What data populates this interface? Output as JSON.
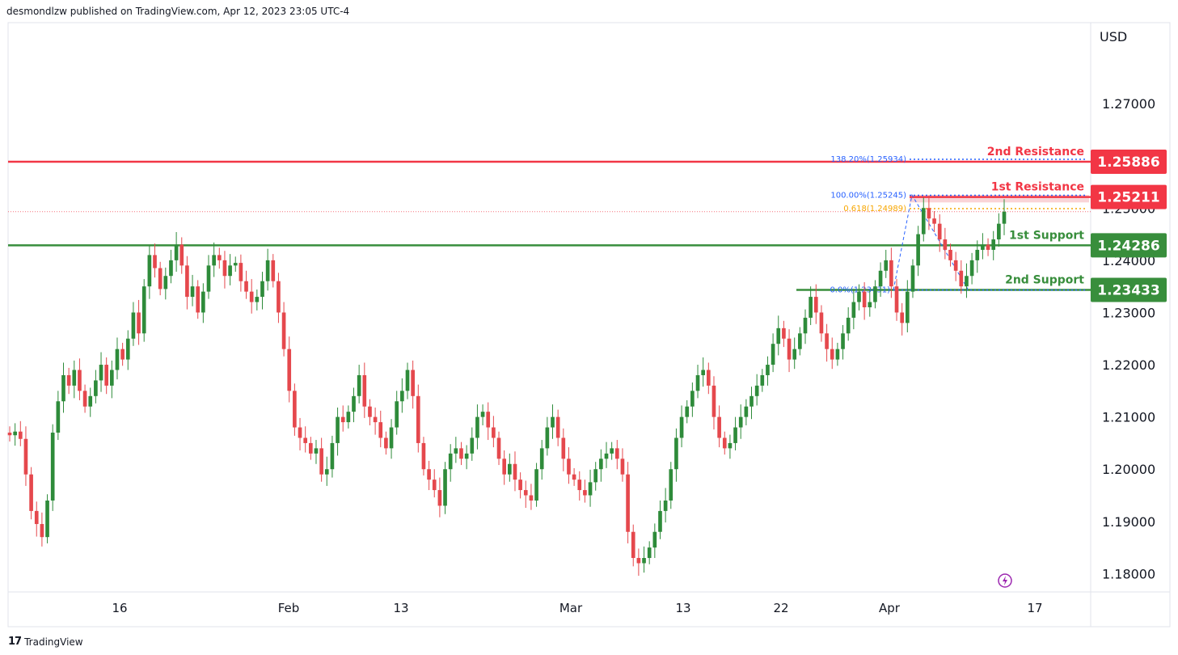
{
  "header": {
    "published": "desmondlzw published on TradingView.com, Apr 12, 2023 23:05 UTC-4"
  },
  "footer": {
    "logo": "17",
    "brand": "TradingView"
  },
  "colors": {
    "resistance": "#f23645",
    "support": "#388e3c",
    "bull": "#2e8b3a",
    "bear": "#e5484d",
    "fib": "#2962ff",
    "fib618": "#f7a600",
    "zone": "#f8c9cd"
  },
  "chart_data": {
    "type": "candlestick",
    "currency": "USD",
    "yticks": [
      "1.27000",
      "1.25000",
      "1.24000",
      "1.23000",
      "1.22000",
      "1.21000",
      "1.20000",
      "1.19000",
      "1.18000"
    ],
    "ylim": [
      1.1765,
      1.2855
    ],
    "xticks": [
      "16",
      "Feb",
      "13",
      "Mar",
      "13",
      "22",
      "Apr",
      "17"
    ],
    "levels": [
      {
        "name": "2nd Resistance",
        "price": "1.25886",
        "value": 1.25886,
        "kind": "resistance"
      },
      {
        "name": "1st Resistance",
        "price": "1.25211",
        "value": 1.25211,
        "kind": "resistance"
      },
      {
        "name": "1st Support",
        "price": "1.24286",
        "value": 1.24286,
        "kind": "support"
      },
      {
        "name": "2nd Support",
        "price": "1.23433",
        "value": 1.23433,
        "kind": "support"
      }
    ],
    "fib_labels": [
      {
        "text": "138.20%(1.25934)",
        "value": 1.25934
      },
      {
        "text": "100.00%(1.25245)",
        "value": 1.25245
      },
      {
        "text": "0.618(1.24989)",
        "value": 1.24989
      },
      {
        "text": "0.0%(1.23431)",
        "value": 1.23431
      }
    ],
    "current_price": 1.2493,
    "trend_high_low": {
      "start": 1.2343,
      "mid": 1.2525,
      "end": 1.2345
    },
    "closes": [
      1.2065,
      1.2072,
      1.2058,
      1.199,
      1.192,
      1.1895,
      1.187,
      1.194,
      1.207,
      1.213,
      1.218,
      1.216,
      1.219,
      1.215,
      1.212,
      1.214,
      1.217,
      1.22,
      1.216,
      1.219,
      1.223,
      1.221,
      1.225,
      1.23,
      1.226,
      1.235,
      1.241,
      1.2385,
      1.2345,
      1.237,
      1.24,
      1.243,
      1.239,
      1.233,
      1.235,
      1.23,
      1.234,
      1.239,
      1.241,
      1.24,
      1.237,
      1.239,
      1.2395,
      1.236,
      1.234,
      1.232,
      1.233,
      1.236,
      1.24,
      1.236,
      1.23,
      1.223,
      1.215,
      1.208,
      1.206,
      1.205,
      1.203,
      1.204,
      1.199,
      1.2,
      1.205,
      1.21,
      1.209,
      1.211,
      1.214,
      1.218,
      1.212,
      1.21,
      1.209,
      1.206,
      1.204,
      1.208,
      1.213,
      1.215,
      1.219,
      1.214,
      1.205,
      1.2,
      1.198,
      1.196,
      1.193,
      1.2,
      1.203,
      1.204,
      1.202,
      1.203,
      1.206,
      1.21,
      1.211,
      1.208,
      1.206,
      1.202,
      1.199,
      1.201,
      1.198,
      1.196,
      1.195,
      1.194,
      1.2,
      1.204,
      1.208,
      1.21,
      1.206,
      1.202,
      1.199,
      1.198,
      1.196,
      1.195,
      1.1975,
      1.2,
      1.202,
      1.203,
      1.204,
      1.202,
      1.199,
      1.188,
      1.183,
      1.182,
      1.183,
      1.185,
      1.188,
      1.192,
      1.194,
      1.2,
      1.206,
      1.21,
      1.212,
      1.215,
      1.218,
      1.219,
      1.216,
      1.21,
      1.206,
      1.204,
      1.205,
      1.208,
      1.21,
      1.212,
      1.214,
      1.216,
      1.218,
      1.22,
      1.224,
      1.227,
      1.225,
      1.221,
      1.223,
      1.226,
      1.229,
      1.233,
      1.23,
      1.226,
      1.223,
      1.221,
      1.223,
      1.226,
      1.229,
      1.232,
      1.234,
      1.231,
      1.232,
      1.235,
      1.238,
      1.24,
      1.235,
      1.23,
      1.228,
      1.234,
      1.239,
      1.245,
      1.25,
      1.248,
      1.247,
      1.244,
      1.242,
      1.24,
      1.238,
      1.235,
      1.237,
      1.24,
      1.242,
      1.243,
      1.242,
      1.244,
      1.247,
      1.2493
    ]
  }
}
